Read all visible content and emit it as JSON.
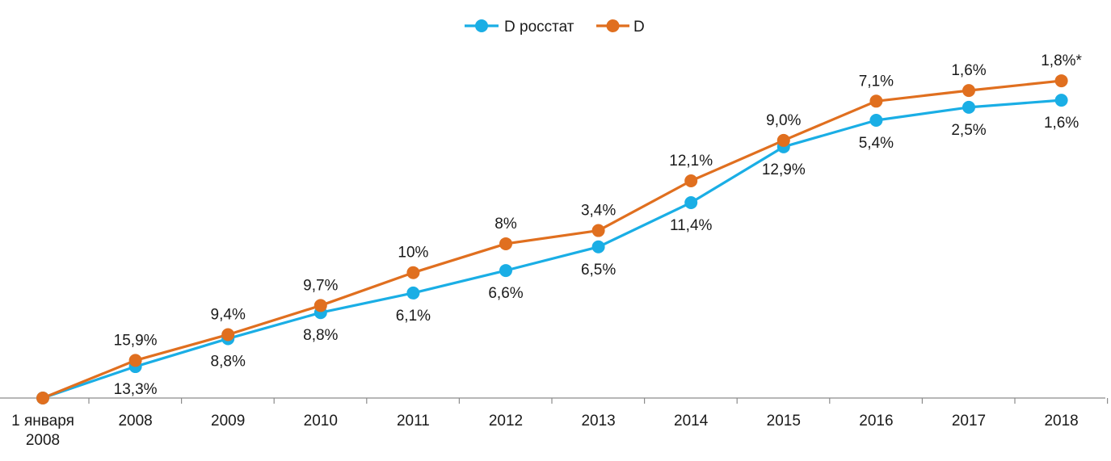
{
  "chart_data": {
    "type": "line",
    "title": "",
    "xlabel": "",
    "ylabel": "",
    "categories": [
      [
        "1 января",
        "2008"
      ],
      [
        "2008"
      ],
      [
        "2009"
      ],
      [
        "2010"
      ],
      [
        "2011"
      ],
      [
        "2012"
      ],
      [
        "2013"
      ],
      [
        "2014"
      ],
      [
        "2015"
      ],
      [
        "2016"
      ],
      [
        "2017"
      ],
      [
        "2018"
      ]
    ],
    "ylim": [
      0,
      1.75
    ],
    "grid": false,
    "legend_position": "top-center",
    "series": [
      {
        "name": "D росстат",
        "color": "#1aaee5",
        "label_position": "below",
        "values": [
          0,
          0.133,
          0.251,
          0.361,
          0.444,
          0.539,
          0.639,
          0.826,
          1.062,
          1.174,
          1.229,
          1.259
        ],
        "labels": [
          "",
          "13,3%",
          "8,8%",
          "8,8%",
          "6,1%",
          "6,6%",
          "6,5%",
          "11,4%",
          "12,9%",
          "5,4%",
          "2,5%",
          "1,6%"
        ]
      },
      {
        "name": "D",
        "color": "#e06f1f",
        "label_position": "above",
        "values": [
          0,
          0.159,
          0.268,
          0.391,
          0.53,
          0.652,
          0.708,
          0.918,
          1.089,
          1.255,
          1.3,
          1.341
        ],
        "labels": [
          "",
          "15,9%",
          "9,4%",
          "9,7%",
          "10%",
          "8%",
          "3,4%",
          "12,1%",
          "9,0%",
          "7,1%",
          "1,6%",
          "1,8%*"
        ]
      }
    ]
  }
}
